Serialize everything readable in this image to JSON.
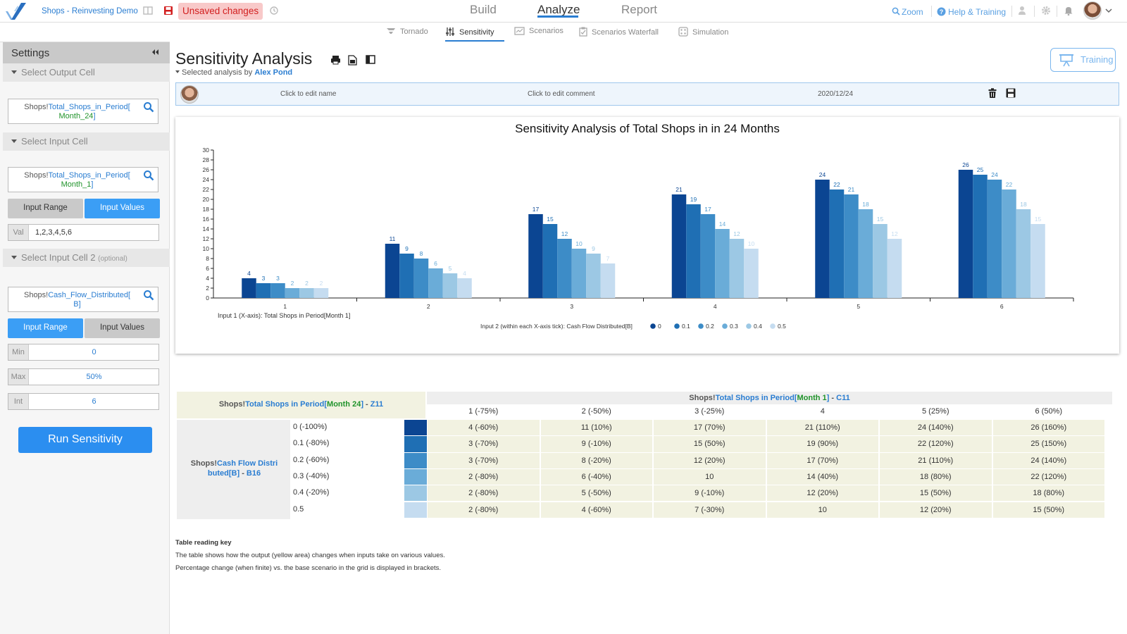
{
  "app": {
    "title": "Shops - Reinvesting Demo",
    "unsaved": "Unsaved changes",
    "nav": [
      "Build",
      "Analyze",
      "Report"
    ],
    "active_nav": "Analyze",
    "right_links": {
      "zoom": "Zoom",
      "help": "Help & Training"
    }
  },
  "subnav": [
    "Tornado",
    "Sensitivity",
    "Scenarios",
    "Scenarios Waterfall",
    "Simulation"
  ],
  "sidebar": {
    "title": "Settings",
    "output_section": "Select Output Cell",
    "output_cell": {
      "prefix": "Shops!",
      "name": "Total_Shops_in_Period[",
      "arg": "Month_24",
      "close": "]"
    },
    "input_section": "Select Input Cell",
    "input_cell": {
      "prefix": "Shops!",
      "name": "Total_Shops_in_Period[",
      "arg": "Month_1",
      "close": "]"
    },
    "input_range_label": "Input Range",
    "input_values_label": "Input Values",
    "val_label": "Val",
    "val_value": "1,2,3,4,5,6",
    "input2_section": "Select Input Cell 2",
    "input2_optional": "(optional)",
    "input2_cell": {
      "prefix": "Shops!",
      "name": "Cash_Flow_Distributed[",
      "arg": "B",
      "close": "]"
    },
    "min_label": "Min",
    "min_value": "0",
    "max_label": "Max",
    "max_value": "50%",
    "int_label": "Int",
    "int_value": "6",
    "run_label": "Run Sensitivity"
  },
  "main": {
    "title": "Sensitivity Analysis",
    "selected_by_prefix": "Selected analysis by",
    "selected_by_name": "Alex Pond",
    "training": "Training",
    "info": {
      "name": "Click to edit name",
      "comment": "Click to edit comment",
      "date": "2020/12/24"
    }
  },
  "chart_data": {
    "type": "bar",
    "title": "Sensitivity Analysis of Total Shops in in 24 Months",
    "categories": [
      "1",
      "2",
      "3",
      "4",
      "5",
      "6"
    ],
    "ylim": [
      0,
      30
    ],
    "yticks": [
      0,
      2,
      4,
      6,
      8,
      10,
      12,
      14,
      16,
      18,
      20,
      22,
      24,
      26,
      28,
      30
    ],
    "xlabel": "Input 1 (X-axis): Total Shops in Period[Month 1]",
    "legend_title": "Input 2 (within each X-axis tick): Cash Flow Distributed[B]",
    "legend_position": "bottom",
    "series": [
      {
        "name": "0",
        "color": "#0b4592",
        "values": [
          4,
          11,
          17,
          21,
          24,
          26
        ]
      },
      {
        "name": "0.1",
        "color": "#1f6fb4",
        "values": [
          3,
          9,
          15,
          19,
          22,
          25
        ]
      },
      {
        "name": "0.2",
        "color": "#3d8cc7",
        "values": [
          3,
          8,
          12,
          17,
          21,
          24
        ]
      },
      {
        "name": "0.3",
        "color": "#6aacd8",
        "values": [
          2,
          6,
          10,
          14,
          18,
          22
        ]
      },
      {
        "name": "0.4",
        "color": "#9cc8e4",
        "values": [
          2,
          5,
          9,
          12,
          15,
          18
        ]
      },
      {
        "name": "0.5",
        "color": "#c5dcf0",
        "values": [
          2,
          4,
          7,
          10,
          12,
          15
        ]
      }
    ]
  },
  "table": {
    "corner": {
      "prefix": "Shops!",
      "name": "Total Shops in Period",
      "lb": "[",
      "arg": "Month 24",
      "rb": "]",
      "sep": " - ",
      "cell": "Z11"
    },
    "col_header": {
      "prefix": "Shops!",
      "name": "Total Shops in Period",
      "lb": "[",
      "arg": "Month 1",
      "rb": "]",
      "sep": " - ",
      "cell": "C11"
    },
    "row_header": {
      "prefix": "Shops!",
      "name": "Cash Flow Distri buted",
      "lb": "[",
      "arg": "B",
      "rb": "]",
      "sep": " - ",
      "cell": "B16"
    },
    "cols": [
      "1 (-75%)",
      "2 (-50%)",
      "3 (-25%)",
      "4",
      "5 (25%)",
      "6 (50%)"
    ],
    "rows": [
      {
        "label": "0 (-100%)",
        "color": "#0b4592",
        "cells": [
          "4 (-60%)",
          "11 (10%)",
          "17 (70%)",
          "21 (110%)",
          "24 (140%)",
          "26 (160%)"
        ]
      },
      {
        "label": "0.1 (-80%)",
        "color": "#1f6fb4",
        "cells": [
          "3 (-70%)",
          "9 (-10%)",
          "15 (50%)",
          "19 (90%)",
          "22 (120%)",
          "25 (150%)"
        ]
      },
      {
        "label": "0.2 (-60%)",
        "color": "#3d8cc7",
        "cells": [
          "3 (-70%)",
          "8 (-20%)",
          "12 (20%)",
          "17 (70%)",
          "21 (110%)",
          "24 (140%)"
        ]
      },
      {
        "label": "0.3 (-40%)",
        "color": "#6aacd8",
        "cells": [
          "2 (-80%)",
          "6 (-40%)",
          "10",
          "14 (40%)",
          "18 (80%)",
          "22 (120%)"
        ]
      },
      {
        "label": "0.4 (-20%)",
        "color": "#9cc8e4",
        "cells": [
          "2 (-80%)",
          "5 (-50%)",
          "9 (-10%)",
          "12 (20%)",
          "15 (50%)",
          "18 (80%)"
        ]
      },
      {
        "label": "0.5",
        "color": "#c5dcf0",
        "cells": [
          "2 (-80%)",
          "4 (-60%)",
          "7 (-30%)",
          "10",
          "12 (20%)",
          "15 (50%)"
        ]
      }
    ]
  },
  "key": {
    "title": "Table reading key",
    "line1": "The table shows how the output (yellow area) changes when inputs take on various values.",
    "line2": "Percentage change (when finite) vs. the base scenario in the grid is displayed in brackets."
  }
}
